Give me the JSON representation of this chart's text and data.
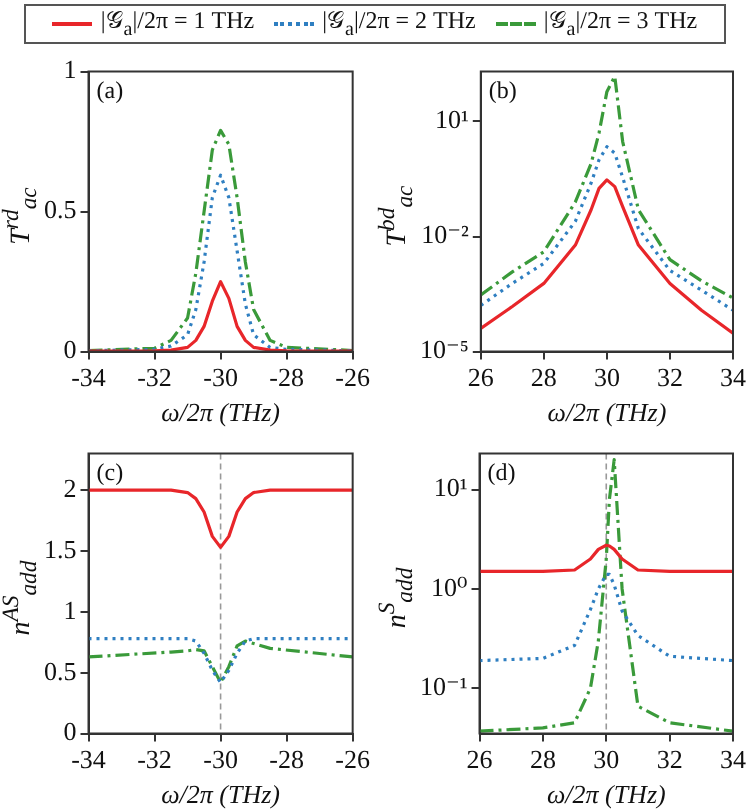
{
  "chart_data": [
    {
      "type": "line",
      "xlabel": "ω/2π (THz)",
      "ylabel": "T$^{rd}$$_{ac}$",
      "xlim": [
        -34,
        -26
      ],
      "xticks": [
        -34,
        -32,
        -30,
        -28,
        -26
      ],
      "ylim": [
        0,
        1
      ],
      "yticks": [
        0,
        0.5,
        1
      ],
      "legend": "top",
      "annotations": [
        "(a)"
      ],
      "series": [
        {
          "name": "|𝒢$_{a}$|/2π = 1 THz",
          "color": "#e8262a",
          "line_style": "solid",
          "x": [
            -34,
            -32,
            -31.5,
            -31,
            -30.75,
            -30.5,
            -30.25,
            -30,
            -29.75,
            -29.5,
            -29.25,
            -29,
            -28.5,
            -28,
            -26
          ],
          "values": [
            0.002,
            0.003,
            0.005,
            0.015,
            0.04,
            0.09,
            0.18,
            0.25,
            0.19,
            0.09,
            0.04,
            0.015,
            0.005,
            0.003,
            0.002
          ]
        },
        {
          "name": "|𝒢$_{a}$|/2π = 2 THz",
          "color": "#2f7fc1",
          "line_style": "dotted",
          "x": [
            -34,
            -32,
            -31.5,
            -31,
            -30.75,
            -30.5,
            -30.25,
            -30,
            -29.75,
            -29.5,
            -29.25,
            -29,
            -28.5,
            -28,
            -26
          ],
          "values": [
            0.003,
            0.008,
            0.02,
            0.06,
            0.15,
            0.32,
            0.55,
            0.63,
            0.55,
            0.36,
            0.17,
            0.06,
            0.015,
            0.008,
            0.003
          ]
        },
        {
          "name": "|𝒢$_{a}$|/2π = 3 THz",
          "color": "#3a9a3a",
          "line_style": "dashed",
          "x": [
            -34,
            -32,
            -31.5,
            -31,
            -30.75,
            -30.5,
            -30.25,
            -30,
            -29.75,
            -29.5,
            -29.25,
            -29,
            -28.5,
            -28,
            -26
          ],
          "values": [
            0.004,
            0.012,
            0.04,
            0.12,
            0.28,
            0.5,
            0.72,
            0.79,
            0.74,
            0.55,
            0.32,
            0.15,
            0.04,
            0.015,
            0.004
          ]
        }
      ]
    },
    {
      "type": "line",
      "xlabel": "ω/2π (THz)",
      "ylabel": "T$^{bd}$$_{ac}$",
      "log": "y",
      "xlim": [
        26,
        34
      ],
      "xticks": [
        26,
        28,
        30,
        32,
        34
      ],
      "ylim": [
        1e-05,
        200
      ],
      "yticks": [
        {
          "value": 1e-05,
          "label": "10⁻⁵"
        },
        {
          "value": 0.01,
          "label": "10⁻²"
        },
        {
          "value": 10,
          "label": "10¹"
        }
      ],
      "annotations": [
        "(b)"
      ],
      "series": [
        {
          "color": "#e8262a",
          "line_style": "solid",
          "x": [
            26,
            27,
            28,
            29,
            29.5,
            29.75,
            30,
            30.25,
            30.5,
            31,
            32,
            33,
            34
          ],
          "values": [
            4e-05,
            0.00015,
            0.0006,
            0.006,
            0.05,
            0.18,
            0.3,
            0.2,
            0.06,
            0.006,
            0.0006,
            0.00012,
            3e-05
          ]
        },
        {
          "color": "#2f7fc1",
          "line_style": "dotted",
          "x": [
            26,
            27,
            28,
            29,
            29.5,
            29.75,
            30,
            30.25,
            30.5,
            31,
            32,
            33,
            34
          ],
          "values": [
            0.00016,
            0.0006,
            0.002,
            0.025,
            0.25,
            1.0,
            2.2,
            1.5,
            0.35,
            0.016,
            0.0013,
            0.0004,
            0.00012
          ]
        },
        {
          "color": "#3a9a3a",
          "line_style": "dashed",
          "x": [
            26,
            27,
            28,
            29,
            29.5,
            29.75,
            30,
            30.25,
            30.5,
            31,
            32,
            33,
            34
          ],
          "values": [
            0.0003,
            0.0012,
            0.004,
            0.08,
            0.8,
            5,
            60,
            150,
            3,
            0.05,
            0.0025,
            0.0007,
            0.00025
          ]
        }
      ]
    },
    {
      "type": "line",
      "xlabel": "ω/2π (THz)",
      "ylabel": "n$^{AS}$$_{add}$",
      "xlim": [
        -34,
        -26
      ],
      "xticks": [
        -34,
        -32,
        -30,
        -28,
        -26
      ],
      "ylim": [
        0,
        2.3
      ],
      "yticks": [
        0,
        0.5,
        1,
        1.5,
        2
      ],
      "annotations": [
        "(c)"
      ],
      "ref_lines": [
        {
          "axis": "x",
          "value": -30,
          "color": "#999999",
          "line_style": "dashed"
        }
      ],
      "series": [
        {
          "color": "#e8262a",
          "line_style": "solid",
          "x": [
            -34,
            -31.5,
            -31,
            -30.75,
            -30.5,
            -30.25,
            -30,
            -29.75,
            -29.5,
            -29.25,
            -29,
            -28.5,
            -26
          ],
          "values": [
            2,
            2,
            1.98,
            1.93,
            1.82,
            1.62,
            1.53,
            1.62,
            1.82,
            1.93,
            1.98,
            2,
            2
          ]
        },
        {
          "color": "#2f7fc1",
          "line_style": "dotted",
          "x": [
            -34,
            -31.5,
            -31,
            -30.75,
            -30.5,
            -30.25,
            -30,
            -29.75,
            -29.5,
            -29.25,
            -29,
            -28.5,
            -26
          ],
          "values": [
            0.78,
            0.78,
            0.78,
            0.76,
            0.66,
            0.52,
            0.42,
            0.52,
            0.66,
            0.76,
            0.78,
            0.78,
            0.78
          ]
        },
        {
          "color": "#3a9a3a",
          "line_style": "dashed",
          "x": [
            -34,
            -31.5,
            -31,
            -30.75,
            -30.5,
            -30.25,
            -30,
            -29.75,
            -29.5,
            -29.25,
            -29,
            -28.5,
            -26
          ],
          "values": [
            0.63,
            0.67,
            0.68,
            0.69,
            0.68,
            0.55,
            0.42,
            0.55,
            0.72,
            0.76,
            0.74,
            0.7,
            0.63
          ]
        }
      ]
    },
    {
      "type": "line",
      "xlabel": "ω/2π (THz)",
      "ylabel": "n$^{S}$$_{add}$",
      "log": "y",
      "xlim": [
        26,
        34
      ],
      "xticks": [
        26,
        28,
        30,
        32,
        34
      ],
      "ylim": [
        0.035,
        23
      ],
      "yticks": [
        {
          "value": 0.1,
          "label": "10⁻¹"
        },
        {
          "value": 1,
          "label": "10⁰"
        },
        {
          "value": 10,
          "label": "10¹"
        }
      ],
      "annotations": [
        "(d)"
      ],
      "ref_lines": [
        {
          "axis": "x",
          "value": 30,
          "color": "#999999",
          "line_style": "dashed"
        }
      ],
      "series": [
        {
          "color": "#e8262a",
          "line_style": "solid",
          "x": [
            26,
            28,
            29,
            29.5,
            29.75,
            30,
            30.1,
            30.25,
            30.5,
            31,
            32,
            34
          ],
          "values": [
            1.5,
            1.5,
            1.55,
            2.0,
            2.5,
            2.75,
            2.7,
            2.5,
            2.0,
            1.55,
            1.5,
            1.5
          ]
        },
        {
          "color": "#2f7fc1",
          "line_style": "dotted",
          "x": [
            26,
            28,
            29,
            29.5,
            29.75,
            30,
            30.1,
            30.25,
            30.5,
            31,
            32,
            34
          ],
          "values": [
            0.19,
            0.2,
            0.27,
            0.62,
            1.0,
            1.4,
            1.4,
            1.1,
            0.6,
            0.34,
            0.21,
            0.19
          ]
        },
        {
          "color": "#3a9a3a",
          "line_style": "dashed",
          "x": [
            26,
            28,
            29,
            29.5,
            29.75,
            30,
            30.1,
            30.25,
            30.5,
            31,
            32,
            34
          ],
          "values": [
            0.037,
            0.04,
            0.045,
            0.1,
            0.3,
            2,
            8,
            20,
            1,
            0.066,
            0.045,
            0.037
          ]
        }
      ]
    }
  ]
}
